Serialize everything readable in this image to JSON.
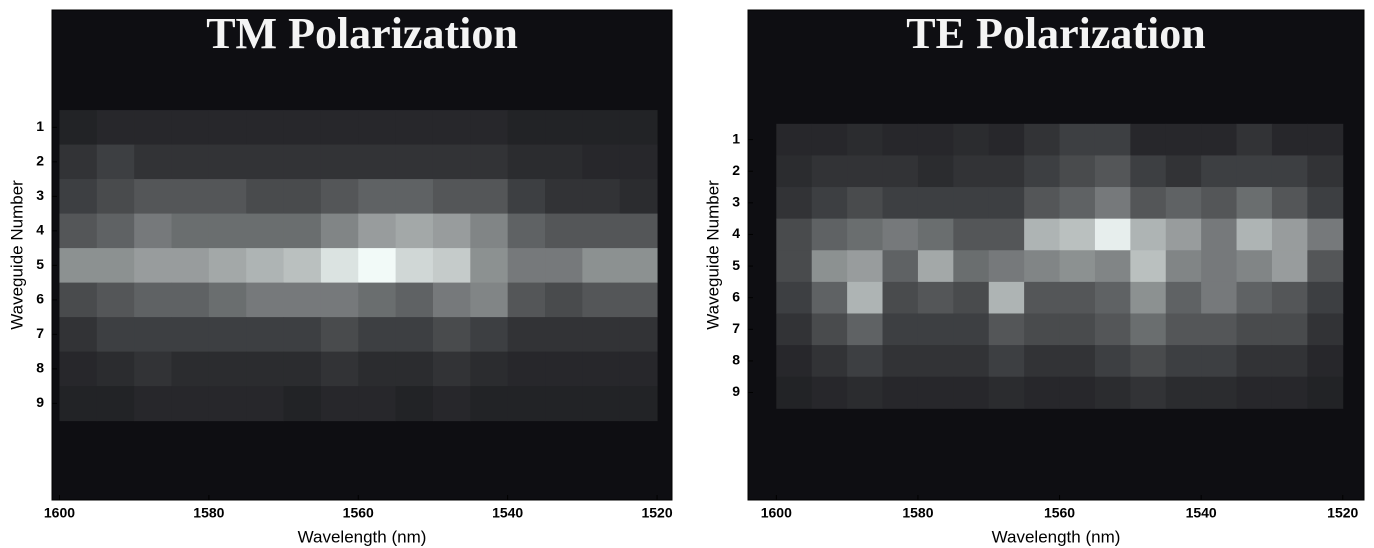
{
  "chart_data": [
    {
      "type": "heatmap",
      "title": "TM Polarization",
      "xlabel": "Wavelength (nm)",
      "ylabel": "Waveguide Number",
      "x": [
        1597.5,
        1592.5,
        1587.5,
        1582.5,
        1577.5,
        1572.5,
        1567.5,
        1562.5,
        1557.5,
        1552.5,
        1547.5,
        1542.5,
        1537.5,
        1532.5,
        1527.5,
        1522.5
      ],
      "y": [
        1,
        2,
        3,
        4,
        5,
        6,
        7,
        8,
        9
      ],
      "values": [
        [
          0.08,
          0.1,
          0.1,
          0.1,
          0.1,
          0.1,
          0.1,
          0.1,
          0.1,
          0.1,
          0.1,
          0.1,
          0.08,
          0.08,
          0.08,
          0.08
        ],
        [
          0.15,
          0.2,
          0.15,
          0.15,
          0.15,
          0.15,
          0.15,
          0.15,
          0.15,
          0.15,
          0.15,
          0.15,
          0.12,
          0.12,
          0.1,
          0.1
        ],
        [
          0.2,
          0.25,
          0.3,
          0.3,
          0.3,
          0.25,
          0.25,
          0.3,
          0.35,
          0.35,
          0.3,
          0.3,
          0.2,
          0.15,
          0.15,
          0.12
        ],
        [
          0.3,
          0.35,
          0.45,
          0.4,
          0.4,
          0.4,
          0.4,
          0.5,
          0.6,
          0.65,
          0.6,
          0.5,
          0.35,
          0.3,
          0.3,
          0.3
        ],
        [
          0.55,
          0.55,
          0.6,
          0.6,
          0.65,
          0.7,
          0.75,
          0.9,
          1.0,
          0.85,
          0.8,
          0.55,
          0.45,
          0.45,
          0.55,
          0.55
        ],
        [
          0.25,
          0.3,
          0.35,
          0.35,
          0.4,
          0.45,
          0.45,
          0.45,
          0.4,
          0.35,
          0.45,
          0.5,
          0.3,
          0.25,
          0.3,
          0.3
        ],
        [
          0.15,
          0.2,
          0.2,
          0.2,
          0.2,
          0.2,
          0.2,
          0.25,
          0.2,
          0.2,
          0.25,
          0.2,
          0.15,
          0.15,
          0.15,
          0.15
        ],
        [
          0.1,
          0.12,
          0.15,
          0.12,
          0.12,
          0.12,
          0.12,
          0.15,
          0.12,
          0.12,
          0.15,
          0.12,
          0.1,
          0.1,
          0.1,
          0.1
        ],
        [
          0.08,
          0.08,
          0.1,
          0.1,
          0.1,
          0.1,
          0.08,
          0.1,
          0.1,
          0.08,
          0.1,
          0.08,
          0.08,
          0.08,
          0.08,
          0.08
        ]
      ],
      "xlim": [
        1601,
        1518
      ],
      "xticks": [
        1600,
        1580,
        1560,
        1540,
        1520
      ],
      "ylim": [
        -2.4,
        11.8
      ],
      "yticks": [
        1,
        2,
        3,
        4,
        5,
        6,
        7,
        8,
        9
      ],
      "background": "#0e0e12",
      "colormap": [
        "#101014",
        "#f2faf8"
      ]
    },
    {
      "type": "heatmap",
      "title": "TE Polarization",
      "xlabel": "Wavelength (nm)",
      "ylabel": "Waveguide Number",
      "x": [
        1597.5,
        1592.5,
        1587.5,
        1582.5,
        1577.5,
        1572.5,
        1567.5,
        1562.5,
        1557.5,
        1552.5,
        1547.5,
        1542.5,
        1537.5,
        1532.5,
        1527.5,
        1522.5
      ],
      "y": [
        1,
        2,
        3,
        4,
        5,
        6,
        7,
        8,
        9
      ],
      "values": [
        [
          0.1,
          0.1,
          0.12,
          0.1,
          0.1,
          0.12,
          0.1,
          0.15,
          0.2,
          0.2,
          0.1,
          0.1,
          0.1,
          0.15,
          0.1,
          0.1
        ],
        [
          0.12,
          0.15,
          0.15,
          0.15,
          0.12,
          0.15,
          0.15,
          0.2,
          0.25,
          0.3,
          0.2,
          0.15,
          0.2,
          0.2,
          0.2,
          0.15
        ],
        [
          0.15,
          0.2,
          0.25,
          0.2,
          0.2,
          0.2,
          0.2,
          0.3,
          0.35,
          0.45,
          0.3,
          0.35,
          0.3,
          0.4,
          0.3,
          0.2
        ],
        [
          0.25,
          0.35,
          0.4,
          0.45,
          0.4,
          0.3,
          0.3,
          0.7,
          0.75,
          0.95,
          0.7,
          0.6,
          0.45,
          0.7,
          0.6,
          0.45
        ],
        [
          0.25,
          0.55,
          0.6,
          0.35,
          0.65,
          0.4,
          0.45,
          0.5,
          0.55,
          0.5,
          0.75,
          0.5,
          0.45,
          0.5,
          0.6,
          0.3
        ],
        [
          0.2,
          0.35,
          0.7,
          0.25,
          0.3,
          0.25,
          0.7,
          0.3,
          0.3,
          0.35,
          0.55,
          0.35,
          0.45,
          0.35,
          0.3,
          0.2
        ],
        [
          0.15,
          0.25,
          0.35,
          0.2,
          0.2,
          0.2,
          0.3,
          0.25,
          0.25,
          0.3,
          0.4,
          0.3,
          0.3,
          0.25,
          0.25,
          0.15
        ],
        [
          0.1,
          0.15,
          0.2,
          0.15,
          0.15,
          0.15,
          0.2,
          0.15,
          0.15,
          0.2,
          0.25,
          0.2,
          0.2,
          0.15,
          0.15,
          0.1
        ],
        [
          0.08,
          0.1,
          0.12,
          0.1,
          0.1,
          0.1,
          0.12,
          0.1,
          0.1,
          0.12,
          0.15,
          0.12,
          0.12,
          0.1,
          0.1,
          0.08
        ]
      ],
      "xlim": [
        1604,
        1517
      ],
      "xticks": [
        1600,
        1580,
        1560,
        1540,
        1520
      ],
      "ylim": [
        -3.1,
        12.4
      ],
      "yticks": [
        1,
        2,
        3,
        4,
        5,
        6,
        7,
        8,
        9
      ],
      "background": "#0e0e12",
      "colormap": [
        "#101014",
        "#f2faf8"
      ]
    }
  ]
}
